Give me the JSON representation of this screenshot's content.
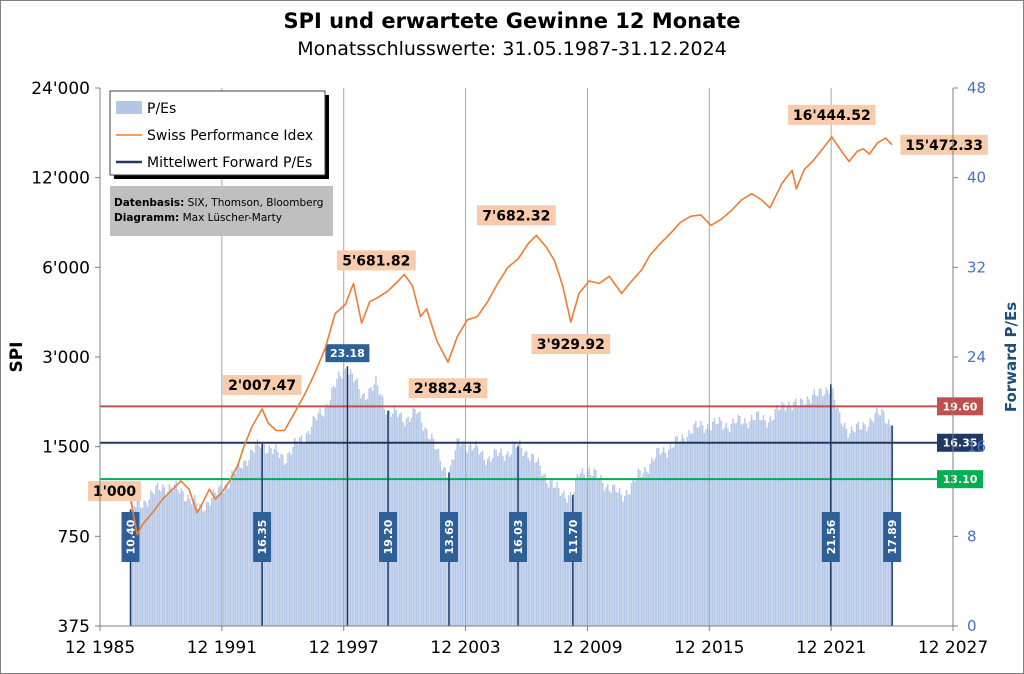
{
  "chart_data": {
    "type": "bar",
    "title": "SPI und erwartete Gewinne 12 Monate",
    "subtitle": "Monatsschlusswerte: 31.05.1987-31.12.2024",
    "ylabel_left": "SPI",
    "ylabel_right": "Forward P/Es",
    "y_left_scale": "log",
    "y_left_range": [
      375,
      24000
    ],
    "y_left_ticks": [
      {
        "v": 375,
        "label": "375"
      },
      {
        "v": 750,
        "label": "750"
      },
      {
        "v": 1500,
        "label": "1'500"
      },
      {
        "v": 3000,
        "label": "3'000"
      },
      {
        "v": 6000,
        "label": "6'000"
      },
      {
        "v": 12000,
        "label": "12'000"
      },
      {
        "v": 24000,
        "label": "24'000"
      }
    ],
    "y_right_range": [
      0,
      48
    ],
    "y_right_ticks": [
      {
        "v": 0,
        "label": "0"
      },
      {
        "v": 8,
        "label": "8"
      },
      {
        "v": 16,
        "label": "16"
      },
      {
        "v": 24,
        "label": "24"
      },
      {
        "v": 32,
        "label": "32"
      },
      {
        "v": 40,
        "label": "40"
      },
      {
        "v": 48,
        "label": "48"
      }
    ],
    "x_range": [
      1985.917,
      2027.917
    ],
    "x_ticks": [
      {
        "v": 1985.917,
        "label": "12 1985"
      },
      {
        "v": 1991.917,
        "label": "12 1991"
      },
      {
        "v": 1997.917,
        "label": "12 1997"
      },
      {
        "v": 2003.917,
        "label": "12 2003"
      },
      {
        "v": 2009.917,
        "label": "12 2009"
      },
      {
        "v": 2015.917,
        "label": "12 2015"
      },
      {
        "v": 2021.917,
        "label": "12 2021"
      },
      {
        "v": 2027.917,
        "label": "12 2027"
      }
    ],
    "grid": "vertical",
    "legend_position": "top-left",
    "legend": [
      {
        "label": "P/Es",
        "kind": "bar",
        "color": "#b4c7e7"
      },
      {
        "label": "Swiss Performance Idex",
        "kind": "line",
        "color": "#ed7d31"
      },
      {
        "label": "Mittelwert Forward P/Es",
        "kind": "line",
        "color": "#1f3864"
      }
    ],
    "note": {
      "line1_label": "Datenbasis:",
      "line1_text": " SIX, Thomson, Bloomberg",
      "line2_label": "Diagramm:",
      "line2_text": " Max Lüscher-Marty"
    },
    "series": [
      {
        "name": "Swiss Performance Idex",
        "axis": "left",
        "color": "#ed7d31",
        "points": [
          [
            1987.42,
            1000
          ],
          [
            1987.75,
            760
          ],
          [
            1988.0,
            820
          ],
          [
            1988.5,
            900
          ],
          [
            1989.0,
            1000
          ],
          [
            1989.5,
            1080
          ],
          [
            1989.9,
            1150
          ],
          [
            1990.3,
            1080
          ],
          [
            1990.7,
            900
          ],
          [
            1990.9,
            950
          ],
          [
            1991.3,
            1080
          ],
          [
            1991.6,
            1000
          ],
          [
            1991.9,
            1050
          ],
          [
            1992.3,
            1150
          ],
          [
            1992.7,
            1300
          ],
          [
            1993.0,
            1500
          ],
          [
            1993.4,
            1750
          ],
          [
            1993.9,
            2007.47
          ],
          [
            1994.2,
            1800
          ],
          [
            1994.6,
            1700
          ],
          [
            1995.0,
            1700
          ],
          [
            1995.5,
            1950
          ],
          [
            1996.0,
            2250
          ],
          [
            1996.5,
            2650
          ],
          [
            1997.0,
            3200
          ],
          [
            1997.5,
            4200
          ],
          [
            1998.0,
            4500
          ],
          [
            1998.4,
            5300
          ],
          [
            1998.8,
            3900
          ],
          [
            1999.2,
            4600
          ],
          [
            1999.6,
            4750
          ],
          [
            2000.1,
            5000
          ],
          [
            2000.6,
            5400
          ],
          [
            2000.9,
            5681.82
          ],
          [
            2001.3,
            5200
          ],
          [
            2001.7,
            4100
          ],
          [
            2002.0,
            4350
          ],
          [
            2002.5,
            3400
          ],
          [
            2003.05,
            2882.43
          ],
          [
            2003.5,
            3500
          ],
          [
            2004.0,
            4000
          ],
          [
            2004.5,
            4100
          ],
          [
            2005.0,
            4600
          ],
          [
            2005.5,
            5300
          ],
          [
            2006.0,
            6000
          ],
          [
            2006.5,
            6400
          ],
          [
            2007.0,
            7200
          ],
          [
            2007.4,
            7682.32
          ],
          [
            2007.9,
            7000
          ],
          [
            2008.3,
            6300
          ],
          [
            2008.7,
            5200
          ],
          [
            2009.1,
            3929.92
          ],
          [
            2009.5,
            4900
          ],
          [
            2010.0,
            5400
          ],
          [
            2010.5,
            5300
          ],
          [
            2011.0,
            5600
          ],
          [
            2011.6,
            4900
          ],
          [
            2012.0,
            5300
          ],
          [
            2012.6,
            5900
          ],
          [
            2013.0,
            6600
          ],
          [
            2013.5,
            7200
          ],
          [
            2014.0,
            7800
          ],
          [
            2014.5,
            8500
          ],
          [
            2015.0,
            8900
          ],
          [
            2015.5,
            9000
          ],
          [
            2016.0,
            8300
          ],
          [
            2016.5,
            8700
          ],
          [
            2017.0,
            9300
          ],
          [
            2017.5,
            10100
          ],
          [
            2018.0,
            10600
          ],
          [
            2018.5,
            10100
          ],
          [
            2018.9,
            9500
          ],
          [
            2019.5,
            11500
          ],
          [
            2020.0,
            12700
          ],
          [
            2020.2,
            11000
          ],
          [
            2020.6,
            12800
          ],
          [
            2021.0,
            13600
          ],
          [
            2021.5,
            15000
          ],
          [
            2021.95,
            16444.52
          ],
          [
            2022.4,
            14800
          ],
          [
            2022.8,
            13600
          ],
          [
            2023.2,
            14700
          ],
          [
            2023.5,
            15000
          ],
          [
            2023.8,
            14400
          ],
          [
            2024.2,
            15700
          ],
          [
            2024.6,
            16300
          ],
          [
            2024.92,
            15472.33
          ]
        ]
      },
      {
        "name": "P/Es",
        "axis": "right",
        "kind": "bar",
        "color": "#b4c7e7",
        "points": [
          [
            1987.42,
            10.4
          ],
          [
            1988.0,
            11.0
          ],
          [
            1989.0,
            12.5
          ],
          [
            1990.0,
            12.0
          ],
          [
            1990.8,
            10.5
          ],
          [
            1991.5,
            11.5
          ],
          [
            1992.3,
            13.0
          ],
          [
            1992.9,
            14.5
          ],
          [
            1993.9,
            16.35
          ],
          [
            1994.5,
            15.5
          ],
          [
            1995.0,
            15.0
          ],
          [
            1996.0,
            17.0
          ],
          [
            1997.0,
            19.5
          ],
          [
            1997.8,
            22.5
          ],
          [
            1998.1,
            23.18
          ],
          [
            1998.8,
            20.5
          ],
          [
            1999.5,
            21.5
          ],
          [
            2000.1,
            19.2
          ],
          [
            2000.9,
            18.5
          ],
          [
            2001.5,
            19.0
          ],
          [
            2002.2,
            17.0
          ],
          [
            2002.7,
            14.5
          ],
          [
            2003.1,
            13.69
          ],
          [
            2003.6,
            16.5
          ],
          [
            2004.2,
            16.0
          ],
          [
            2005.0,
            15.0
          ],
          [
            2006.0,
            15.5
          ],
          [
            2006.5,
            16.03
          ],
          [
            2007.0,
            15.5
          ],
          [
            2007.6,
            14.0
          ],
          [
            2008.5,
            11.9
          ],
          [
            2009.2,
            11.7
          ],
          [
            2009.5,
            13.5
          ],
          [
            2010.0,
            14.0
          ],
          [
            2010.5,
            13.0
          ],
          [
            2011.0,
            12.5
          ],
          [
            2011.6,
            11.5
          ],
          [
            2012.5,
            13.5
          ],
          [
            2013.5,
            15.5
          ],
          [
            2014.5,
            16.5
          ],
          [
            2015.0,
            17.5
          ],
          [
            2016.0,
            18.0
          ],
          [
            2017.0,
            18.0
          ],
          [
            2018.0,
            18.5
          ],
          [
            2019.0,
            18.5
          ],
          [
            2019.7,
            20.0
          ],
          [
            2020.3,
            19.5
          ],
          [
            2020.8,
            20.5
          ],
          [
            2021.3,
            20.5
          ],
          [
            2021.9,
            21.56
          ],
          [
            2022.3,
            18.5
          ],
          [
            2022.8,
            17.5
          ],
          [
            2023.3,
            17.5
          ],
          [
            2023.9,
            18.5
          ],
          [
            2024.5,
            19.0
          ],
          [
            2024.92,
            17.89
          ]
        ]
      }
    ],
    "reference_lines": [
      {
        "name": "19.60",
        "axis": "right",
        "value": 19.6,
        "color": "#c0504d"
      },
      {
        "name": "Mittelwert Forward P/Es",
        "label": "16.35",
        "axis": "right",
        "value": 16.35,
        "color": "#1f3864"
      },
      {
        "name": "13.10",
        "axis": "right",
        "value": 13.1,
        "color": "#00b050"
      }
    ],
    "annotations_spi": [
      {
        "x": 1987.42,
        "y": 1000,
        "label": "1'000",
        "dx": -16,
        "dy": -8
      },
      {
        "x": 1993.9,
        "y": 2007.47,
        "label": "2'007.47",
        "dx": 0,
        "dy": -24
      },
      {
        "x": 2000.9,
        "y": 5681.82,
        "label": "5'681.82",
        "dx": -28,
        "dy": -14
      },
      {
        "x": 2003.05,
        "y": 2882.43,
        "label": "2'882.43",
        "dx": 0,
        "dy": 26
      },
      {
        "x": 2007.4,
        "y": 7682.32,
        "label": "7'682.32",
        "dx": -20,
        "dy": -20
      },
      {
        "x": 2009.1,
        "y": 3929.92,
        "label": "3'929.92",
        "dx": 0,
        "dy": 22
      },
      {
        "x": 2021.95,
        "y": 16444.52,
        "label": "16'444.52",
        "dx": 0,
        "dy": -22
      },
      {
        "x": 2024.92,
        "y": 15472.33,
        "label": "15'472.33",
        "dx": 52,
        "dy": 0
      }
    ],
    "annotations_pe": [
      {
        "x": 1987.42,
        "label": "10.40",
        "anchor_pe": 10.4
      },
      {
        "x": 1993.9,
        "label": "16.35",
        "anchor_pe": 16.35
      },
      {
        "x": 1998.1,
        "label": "23.18",
        "anchor_pe": 23.18,
        "horizontal": true
      },
      {
        "x": 2000.1,
        "label": "19.20",
        "anchor_pe": 19.2
      },
      {
        "x": 2003.1,
        "label": "13.69",
        "anchor_pe": 13.69
      },
      {
        "x": 2006.5,
        "label": "16.03",
        "anchor_pe": 16.03
      },
      {
        "x": 2009.2,
        "label": "11.70",
        "anchor_pe": 11.7
      },
      {
        "x": 2021.9,
        "label": "21.56",
        "anchor_pe": 21.56
      },
      {
        "x": 2024.92,
        "label": "17.89",
        "anchor_pe": 17.89
      }
    ]
  }
}
